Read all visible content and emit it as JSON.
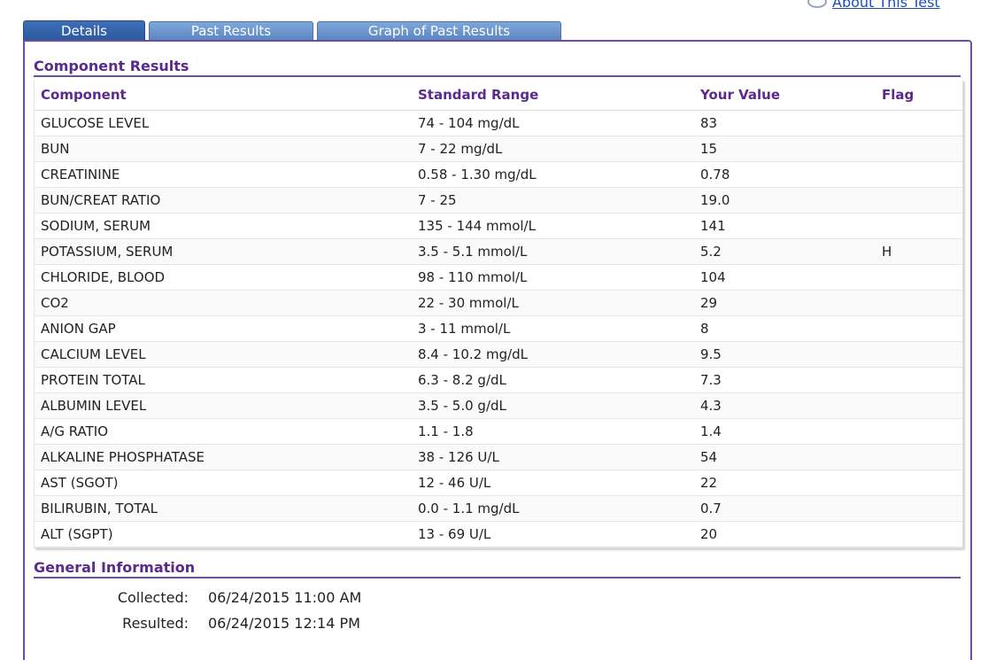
{
  "header": {
    "about_link": "About This Test"
  },
  "tabs": [
    {
      "label": "Details",
      "active": true
    },
    {
      "label": "Past Results",
      "active": false
    },
    {
      "label": "Graph of Past Results",
      "active": false
    }
  ],
  "component_results": {
    "title": "Component Results",
    "columns": [
      "Component",
      "Standard Range",
      "Your Value",
      "Flag"
    ],
    "rows": [
      {
        "component": "GLUCOSE LEVEL",
        "range": "74 - 104 mg/dL",
        "value": "83",
        "flag": ""
      },
      {
        "component": "BUN",
        "range": "7 - 22 mg/dL",
        "value": "15",
        "flag": ""
      },
      {
        "component": "CREATININE",
        "range": "0.58 - 1.30 mg/dL",
        "value": "0.78",
        "flag": ""
      },
      {
        "component": "BUN/CREAT RATIO",
        "range": "7 - 25",
        "value": "19.0",
        "flag": ""
      },
      {
        "component": "SODIUM, SERUM",
        "range": "135 - 144 mmol/L",
        "value": "141",
        "flag": ""
      },
      {
        "component": "POTASSIUM, SERUM",
        "range": "3.5 - 5.1 mmol/L",
        "value": "5.2",
        "flag": "H"
      },
      {
        "component": "CHLORIDE, BLOOD",
        "range": "98 - 110 mmol/L",
        "value": "104",
        "flag": ""
      },
      {
        "component": "CO2",
        "range": "22 - 30 mmol/L",
        "value": "29",
        "flag": ""
      },
      {
        "component": "ANION GAP",
        "range": "3 - 11 mmol/L",
        "value": "8",
        "flag": ""
      },
      {
        "component": "CALCIUM LEVEL",
        "range": "8.4 - 10.2 mg/dL",
        "value": "9.5",
        "flag": ""
      },
      {
        "component": "PROTEIN TOTAL",
        "range": "6.3 - 8.2 g/dL",
        "value": "7.3",
        "flag": ""
      },
      {
        "component": "ALBUMIN LEVEL",
        "range": "3.5 - 5.0 g/dL",
        "value": "4.3",
        "flag": ""
      },
      {
        "component": "A/G RATIO",
        "range": "1.1 - 1.8",
        "value": "1.4",
        "flag": ""
      },
      {
        "component": "ALKALINE PHOSPHATASE",
        "range": "38 - 126 U/L",
        "value": "54",
        "flag": ""
      },
      {
        "component": "AST (SGOT)",
        "range": "12 - 46 U/L",
        "value": "22",
        "flag": ""
      },
      {
        "component": "BILIRUBIN, TOTAL",
        "range": "0.0 - 1.1 mg/dL",
        "value": "0.7",
        "flag": ""
      },
      {
        "component": "ALT (SGPT)",
        "range": "13 - 69 U/L",
        "value": "20",
        "flag": ""
      }
    ]
  },
  "general_information": {
    "title": "General Information",
    "collected_label": "Collected:",
    "collected_value": "06/24/2015 11:00 AM",
    "resulted_label": "Resulted:",
    "resulted_value": "06/24/2015 12:14 PM"
  }
}
